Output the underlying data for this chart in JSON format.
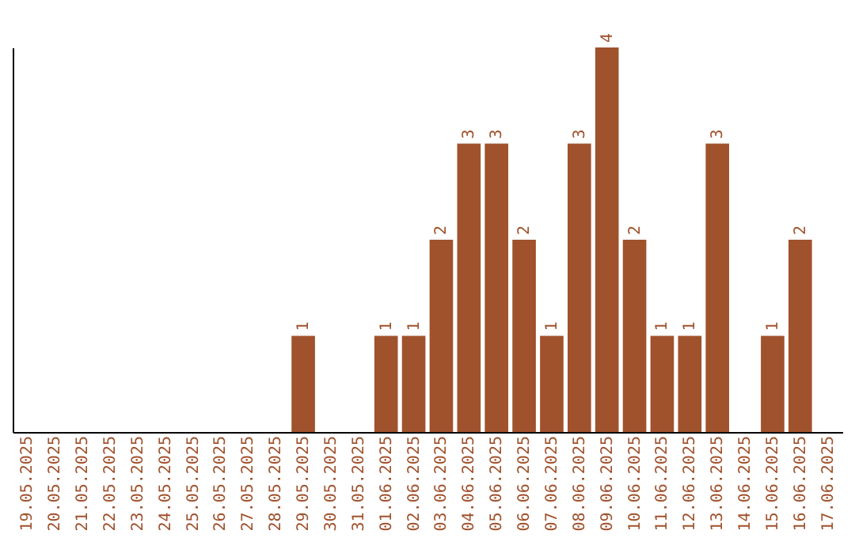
{
  "chart_data": {
    "type": "bar",
    "categories": [
      "19.05.2025",
      "20.05.2025",
      "21.05.2025",
      "22.05.2025",
      "23.05.2025",
      "24.05.2025",
      "25.05.2025",
      "26.05.2025",
      "27.05.2025",
      "28.05.2025",
      "29.05.2025",
      "30.05.2025",
      "31.05.2025",
      "01.06.2025",
      "02.06.2025",
      "03.06.2025",
      "04.06.2025",
      "05.06.2025",
      "06.06.2025",
      "07.06.2025",
      "08.06.2025",
      "09.06.2025",
      "10.06.2025",
      "11.06.2025",
      "12.06.2025",
      "13.06.2025",
      "14.06.2025",
      "15.06.2025",
      "16.06.2025",
      "17.06.2025"
    ],
    "values": [
      0,
      0,
      0,
      0,
      0,
      0,
      0,
      0,
      0,
      0,
      1,
      0,
      0,
      1,
      1,
      2,
      3,
      3,
      2,
      1,
      3,
      4,
      2,
      1,
      1,
      3,
      0,
      1,
      2,
      0
    ],
    "value_labels": [
      null,
      null,
      null,
      null,
      null,
      null,
      null,
      null,
      null,
      null,
      "1",
      null,
      null,
      "1",
      "1",
      "2",
      "3",
      "3",
      "2",
      "1",
      "3",
      "4",
      "2",
      "1",
      "1",
      "3",
      null,
      "1",
      "2",
      null
    ],
    "color": "#a0522d",
    "tick_labels": "x",
    "grid": false
  }
}
